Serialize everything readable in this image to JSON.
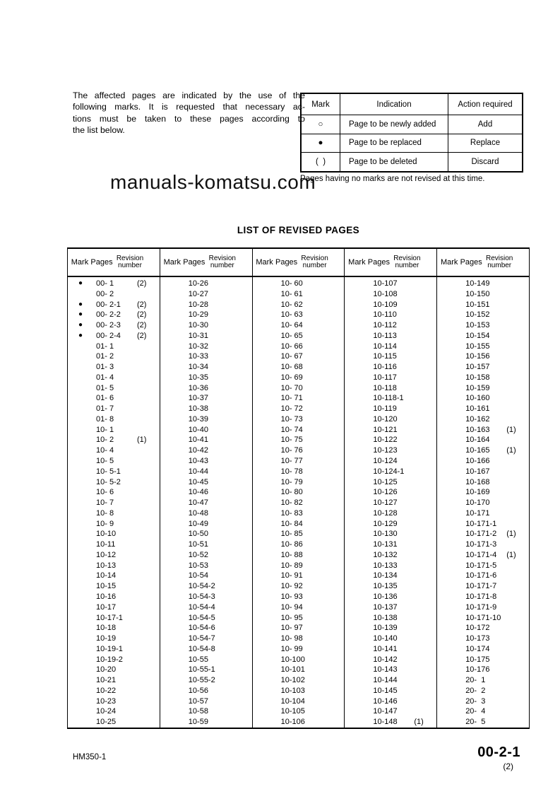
{
  "intro": {
    "lines": [
      "The affected pages are indicated by the use of the",
      "following marks. It is requested that necessary ac-",
      "tions must be taken to these pages according to",
      "the list below."
    ]
  },
  "watermark": "manuals-komatsu.com",
  "marks_table": {
    "headers": [
      "Mark",
      "Indication",
      "Action required"
    ],
    "rows": [
      {
        "mark": "○",
        "indication": "Page to be newly added",
        "action": "Add"
      },
      {
        "mark": "●",
        "indication": "Page to be replaced",
        "action": "Replace"
      },
      {
        "mark": "(  )",
        "indication": "Page to be deleted",
        "action": "Discard"
      }
    ],
    "note": "Pages having no marks are not revised at this time."
  },
  "revised_table": {
    "title": "LIST OF REVISED PAGES",
    "column_headers": {
      "mark": "Mark",
      "pages": "Pages",
      "revision_line1": "Revision",
      "revision_line2": "number"
    },
    "columns": [
      {
        "rows": [
          [
            "●",
            "00- 1",
            "(2)"
          ],
          [
            "",
            "00- 2",
            ""
          ],
          [
            "●",
            "00- 2-1",
            "(2)"
          ],
          [
            "●",
            "00- 2-2",
            "(2)"
          ],
          [
            "●",
            "00- 2-3",
            "(2)"
          ],
          [
            "●",
            "00- 2-4",
            "(2)"
          ],
          [
            "",
            "01- 1",
            ""
          ],
          [
            "",
            "01- 2",
            ""
          ],
          [
            "",
            "01- 3",
            ""
          ],
          [
            "",
            "01- 4",
            ""
          ],
          [
            "",
            "01- 5",
            ""
          ],
          [
            "",
            "01- 6",
            ""
          ],
          [
            "",
            "01- 7",
            ""
          ],
          [
            "",
            "01- 8",
            ""
          ],
          [
            "",
            "10- 1",
            ""
          ],
          [
            "",
            "10- 2",
            "(1)"
          ],
          [
            "",
            "10- 4",
            ""
          ],
          [
            "",
            "10- 5",
            ""
          ],
          [
            "",
            "10- 5-1",
            ""
          ],
          [
            "",
            "10- 5-2",
            ""
          ],
          [
            "",
            "10- 6",
            ""
          ],
          [
            "",
            "10- 7",
            ""
          ],
          [
            "",
            "10- 8",
            ""
          ],
          [
            "",
            "10- 9",
            ""
          ],
          [
            "",
            "10-10",
            ""
          ],
          [
            "",
            "10-11",
            ""
          ],
          [
            "",
            "10-12",
            ""
          ],
          [
            "",
            "10-13",
            ""
          ],
          [
            "",
            "10-14",
            ""
          ],
          [
            "",
            "10-15",
            ""
          ],
          [
            "",
            "10-16",
            ""
          ],
          [
            "",
            "10-17",
            ""
          ],
          [
            "",
            "10-17-1",
            ""
          ],
          [
            "",
            "10-18",
            ""
          ],
          [
            "",
            "10-19",
            ""
          ],
          [
            "",
            "10-19-1",
            ""
          ],
          [
            "",
            "10-19-2",
            ""
          ],
          [
            "",
            "10-20",
            ""
          ],
          [
            "",
            "10-21",
            ""
          ],
          [
            "",
            "10-22",
            ""
          ],
          [
            "",
            "10-23",
            ""
          ],
          [
            "",
            "10-24",
            ""
          ],
          [
            "",
            "10-25",
            ""
          ]
        ]
      },
      {
        "rows": [
          [
            "",
            "10-26",
            ""
          ],
          [
            "",
            "10-27",
            ""
          ],
          [
            "",
            "10-28",
            ""
          ],
          [
            "",
            "10-29",
            ""
          ],
          [
            "",
            "10-30",
            ""
          ],
          [
            "",
            "10-31",
            ""
          ],
          [
            "",
            "10-32",
            ""
          ],
          [
            "",
            "10-33",
            ""
          ],
          [
            "",
            "10-34",
            ""
          ],
          [
            "",
            "10-35",
            ""
          ],
          [
            "",
            "10-36",
            ""
          ],
          [
            "",
            "10-37",
            ""
          ],
          [
            "",
            "10-38",
            ""
          ],
          [
            "",
            "10-39",
            ""
          ],
          [
            "",
            "10-40",
            ""
          ],
          [
            "",
            "10-41",
            ""
          ],
          [
            "",
            "10-42",
            ""
          ],
          [
            "",
            "10-43",
            ""
          ],
          [
            "",
            "10-44",
            ""
          ],
          [
            "",
            "10-45",
            ""
          ],
          [
            "",
            "10-46",
            ""
          ],
          [
            "",
            "10-47",
            ""
          ],
          [
            "",
            "10-48",
            ""
          ],
          [
            "",
            "10-49",
            ""
          ],
          [
            "",
            "10-50",
            ""
          ],
          [
            "",
            "10-51",
            ""
          ],
          [
            "",
            "10-52",
            ""
          ],
          [
            "",
            "10-53",
            ""
          ],
          [
            "",
            "10-54",
            ""
          ],
          [
            "",
            "10-54-2",
            ""
          ],
          [
            "",
            "10-54-3",
            ""
          ],
          [
            "",
            "10-54-4",
            ""
          ],
          [
            "",
            "10-54-5",
            ""
          ],
          [
            "",
            "10-54-6",
            ""
          ],
          [
            "",
            "10-54-7",
            ""
          ],
          [
            "",
            "10-54-8",
            ""
          ],
          [
            "",
            "10-55",
            ""
          ],
          [
            "",
            "10-55-1",
            ""
          ],
          [
            "",
            "10-55-2",
            ""
          ],
          [
            "",
            "10-56",
            ""
          ],
          [
            "",
            "10-57",
            ""
          ],
          [
            "",
            "10-58",
            ""
          ],
          [
            "",
            "10-59",
            ""
          ]
        ]
      },
      {
        "rows": [
          [
            "",
            "10- 60",
            ""
          ],
          [
            "",
            "10- 61",
            ""
          ],
          [
            "",
            "10- 62",
            ""
          ],
          [
            "",
            "10- 63",
            ""
          ],
          [
            "",
            "10- 64",
            ""
          ],
          [
            "",
            "10- 65",
            ""
          ],
          [
            "",
            "10- 66",
            ""
          ],
          [
            "",
            "10- 67",
            ""
          ],
          [
            "",
            "10- 68",
            ""
          ],
          [
            "",
            "10- 69",
            ""
          ],
          [
            "",
            "10- 70",
            ""
          ],
          [
            "",
            "10- 71",
            ""
          ],
          [
            "",
            "10- 72",
            ""
          ],
          [
            "",
            "10- 73",
            ""
          ],
          [
            "",
            "10- 74",
            ""
          ],
          [
            "",
            "10- 75",
            ""
          ],
          [
            "",
            "10- 76",
            ""
          ],
          [
            "",
            "10- 77",
            ""
          ],
          [
            "",
            "10- 78",
            ""
          ],
          [
            "",
            "10- 79",
            ""
          ],
          [
            "",
            "10- 80",
            ""
          ],
          [
            "",
            "10- 82",
            ""
          ],
          [
            "",
            "10- 83",
            ""
          ],
          [
            "",
            "10- 84",
            ""
          ],
          [
            "",
            "10- 85",
            ""
          ],
          [
            "",
            "10- 86",
            ""
          ],
          [
            "",
            "10- 88",
            ""
          ],
          [
            "",
            "10- 89",
            ""
          ],
          [
            "",
            "10- 91",
            ""
          ],
          [
            "",
            "10- 92",
            ""
          ],
          [
            "",
            "10- 93",
            ""
          ],
          [
            "",
            "10- 94",
            ""
          ],
          [
            "",
            "10- 95",
            ""
          ],
          [
            "",
            "10- 97",
            ""
          ],
          [
            "",
            "10- 98",
            ""
          ],
          [
            "",
            "10- 99",
            ""
          ],
          [
            "",
            "10-100",
            ""
          ],
          [
            "",
            "10-101",
            ""
          ],
          [
            "",
            "10-102",
            ""
          ],
          [
            "",
            "10-103",
            ""
          ],
          [
            "",
            "10-104",
            ""
          ],
          [
            "",
            "10-105",
            ""
          ],
          [
            "",
            "10-106",
            ""
          ]
        ]
      },
      {
        "rows": [
          [
            "",
            "10-107",
            ""
          ],
          [
            "",
            "10-108",
            ""
          ],
          [
            "",
            "10-109",
            ""
          ],
          [
            "",
            "10-110",
            ""
          ],
          [
            "",
            "10-112",
            ""
          ],
          [
            "",
            "10-113",
            ""
          ],
          [
            "",
            "10-114",
            ""
          ],
          [
            "",
            "10-115",
            ""
          ],
          [
            "",
            "10-116",
            ""
          ],
          [
            "",
            "10-117",
            ""
          ],
          [
            "",
            "10-118",
            ""
          ],
          [
            "",
            "10-118-1",
            ""
          ],
          [
            "",
            "10-119",
            ""
          ],
          [
            "",
            "10-120",
            ""
          ],
          [
            "",
            "10-121",
            ""
          ],
          [
            "",
            "10-122",
            ""
          ],
          [
            "",
            "10-123",
            ""
          ],
          [
            "",
            "10-124",
            ""
          ],
          [
            "",
            "10-124-1",
            ""
          ],
          [
            "",
            "10-125",
            ""
          ],
          [
            "",
            "10-126",
            ""
          ],
          [
            "",
            "10-127",
            ""
          ],
          [
            "",
            "10-128",
            ""
          ],
          [
            "",
            "10-129",
            ""
          ],
          [
            "",
            "10-130",
            ""
          ],
          [
            "",
            "10-131",
            ""
          ],
          [
            "",
            "10-132",
            ""
          ],
          [
            "",
            "10-133",
            ""
          ],
          [
            "",
            "10-134",
            ""
          ],
          [
            "",
            "10-135",
            ""
          ],
          [
            "",
            "10-136",
            ""
          ],
          [
            "",
            "10-137",
            ""
          ],
          [
            "",
            "10-138",
            ""
          ],
          [
            "",
            "10-139",
            ""
          ],
          [
            "",
            "10-140",
            ""
          ],
          [
            "",
            "10-141",
            ""
          ],
          [
            "",
            "10-142",
            ""
          ],
          [
            "",
            "10-143",
            ""
          ],
          [
            "",
            "10-144",
            ""
          ],
          [
            "",
            "10-145",
            ""
          ],
          [
            "",
            "10-146",
            ""
          ],
          [
            "",
            "10-147",
            ""
          ],
          [
            "",
            "10-148",
            "(1)"
          ]
        ]
      },
      {
        "rows": [
          [
            "",
            "10-149",
            ""
          ],
          [
            "",
            "10-150",
            ""
          ],
          [
            "",
            "10-151",
            ""
          ],
          [
            "",
            "10-152",
            ""
          ],
          [
            "",
            "10-153",
            ""
          ],
          [
            "",
            "10-154",
            ""
          ],
          [
            "",
            "10-155",
            ""
          ],
          [
            "",
            "10-156",
            ""
          ],
          [
            "",
            "10-157",
            ""
          ],
          [
            "",
            "10-158",
            ""
          ],
          [
            "",
            "10-159",
            ""
          ],
          [
            "",
            "10-160",
            ""
          ],
          [
            "",
            "10-161",
            ""
          ],
          [
            "",
            "10-162",
            ""
          ],
          [
            "",
            "10-163",
            "(1)"
          ],
          [
            "",
            "10-164",
            ""
          ],
          [
            "",
            "10-165",
            "(1)"
          ],
          [
            "",
            "10-166",
            ""
          ],
          [
            "",
            "10-167",
            ""
          ],
          [
            "",
            "10-168",
            ""
          ],
          [
            "",
            "10-169",
            ""
          ],
          [
            "",
            "10-170",
            ""
          ],
          [
            "",
            "10-171",
            ""
          ],
          [
            "",
            "10-171-1",
            ""
          ],
          [
            "",
            "10-171-2",
            "(1)"
          ],
          [
            "",
            "10-171-3",
            ""
          ],
          [
            "",
            "10-171-4",
            "(1)"
          ],
          [
            "",
            "10-171-5",
            ""
          ],
          [
            "",
            "10-171-6",
            ""
          ],
          [
            "",
            "10-171-7",
            ""
          ],
          [
            "",
            "10-171-8",
            ""
          ],
          [
            "",
            "10-171-9",
            ""
          ],
          [
            "",
            "10-171-10",
            ""
          ],
          [
            "",
            "10-172",
            ""
          ],
          [
            "",
            "10-173",
            ""
          ],
          [
            "",
            "10-174",
            ""
          ],
          [
            "",
            "10-175",
            ""
          ],
          [
            "",
            "10-176",
            ""
          ],
          [
            "",
            "20-  1",
            ""
          ],
          [
            "",
            "20-  2",
            ""
          ],
          [
            "",
            "20-  3",
            ""
          ],
          [
            "",
            "20-  4",
            ""
          ],
          [
            "",
            "20-  5",
            ""
          ]
        ]
      }
    ]
  },
  "footer": {
    "model": "HM350-1",
    "page": "00-2-1",
    "revision": "(2)"
  }
}
